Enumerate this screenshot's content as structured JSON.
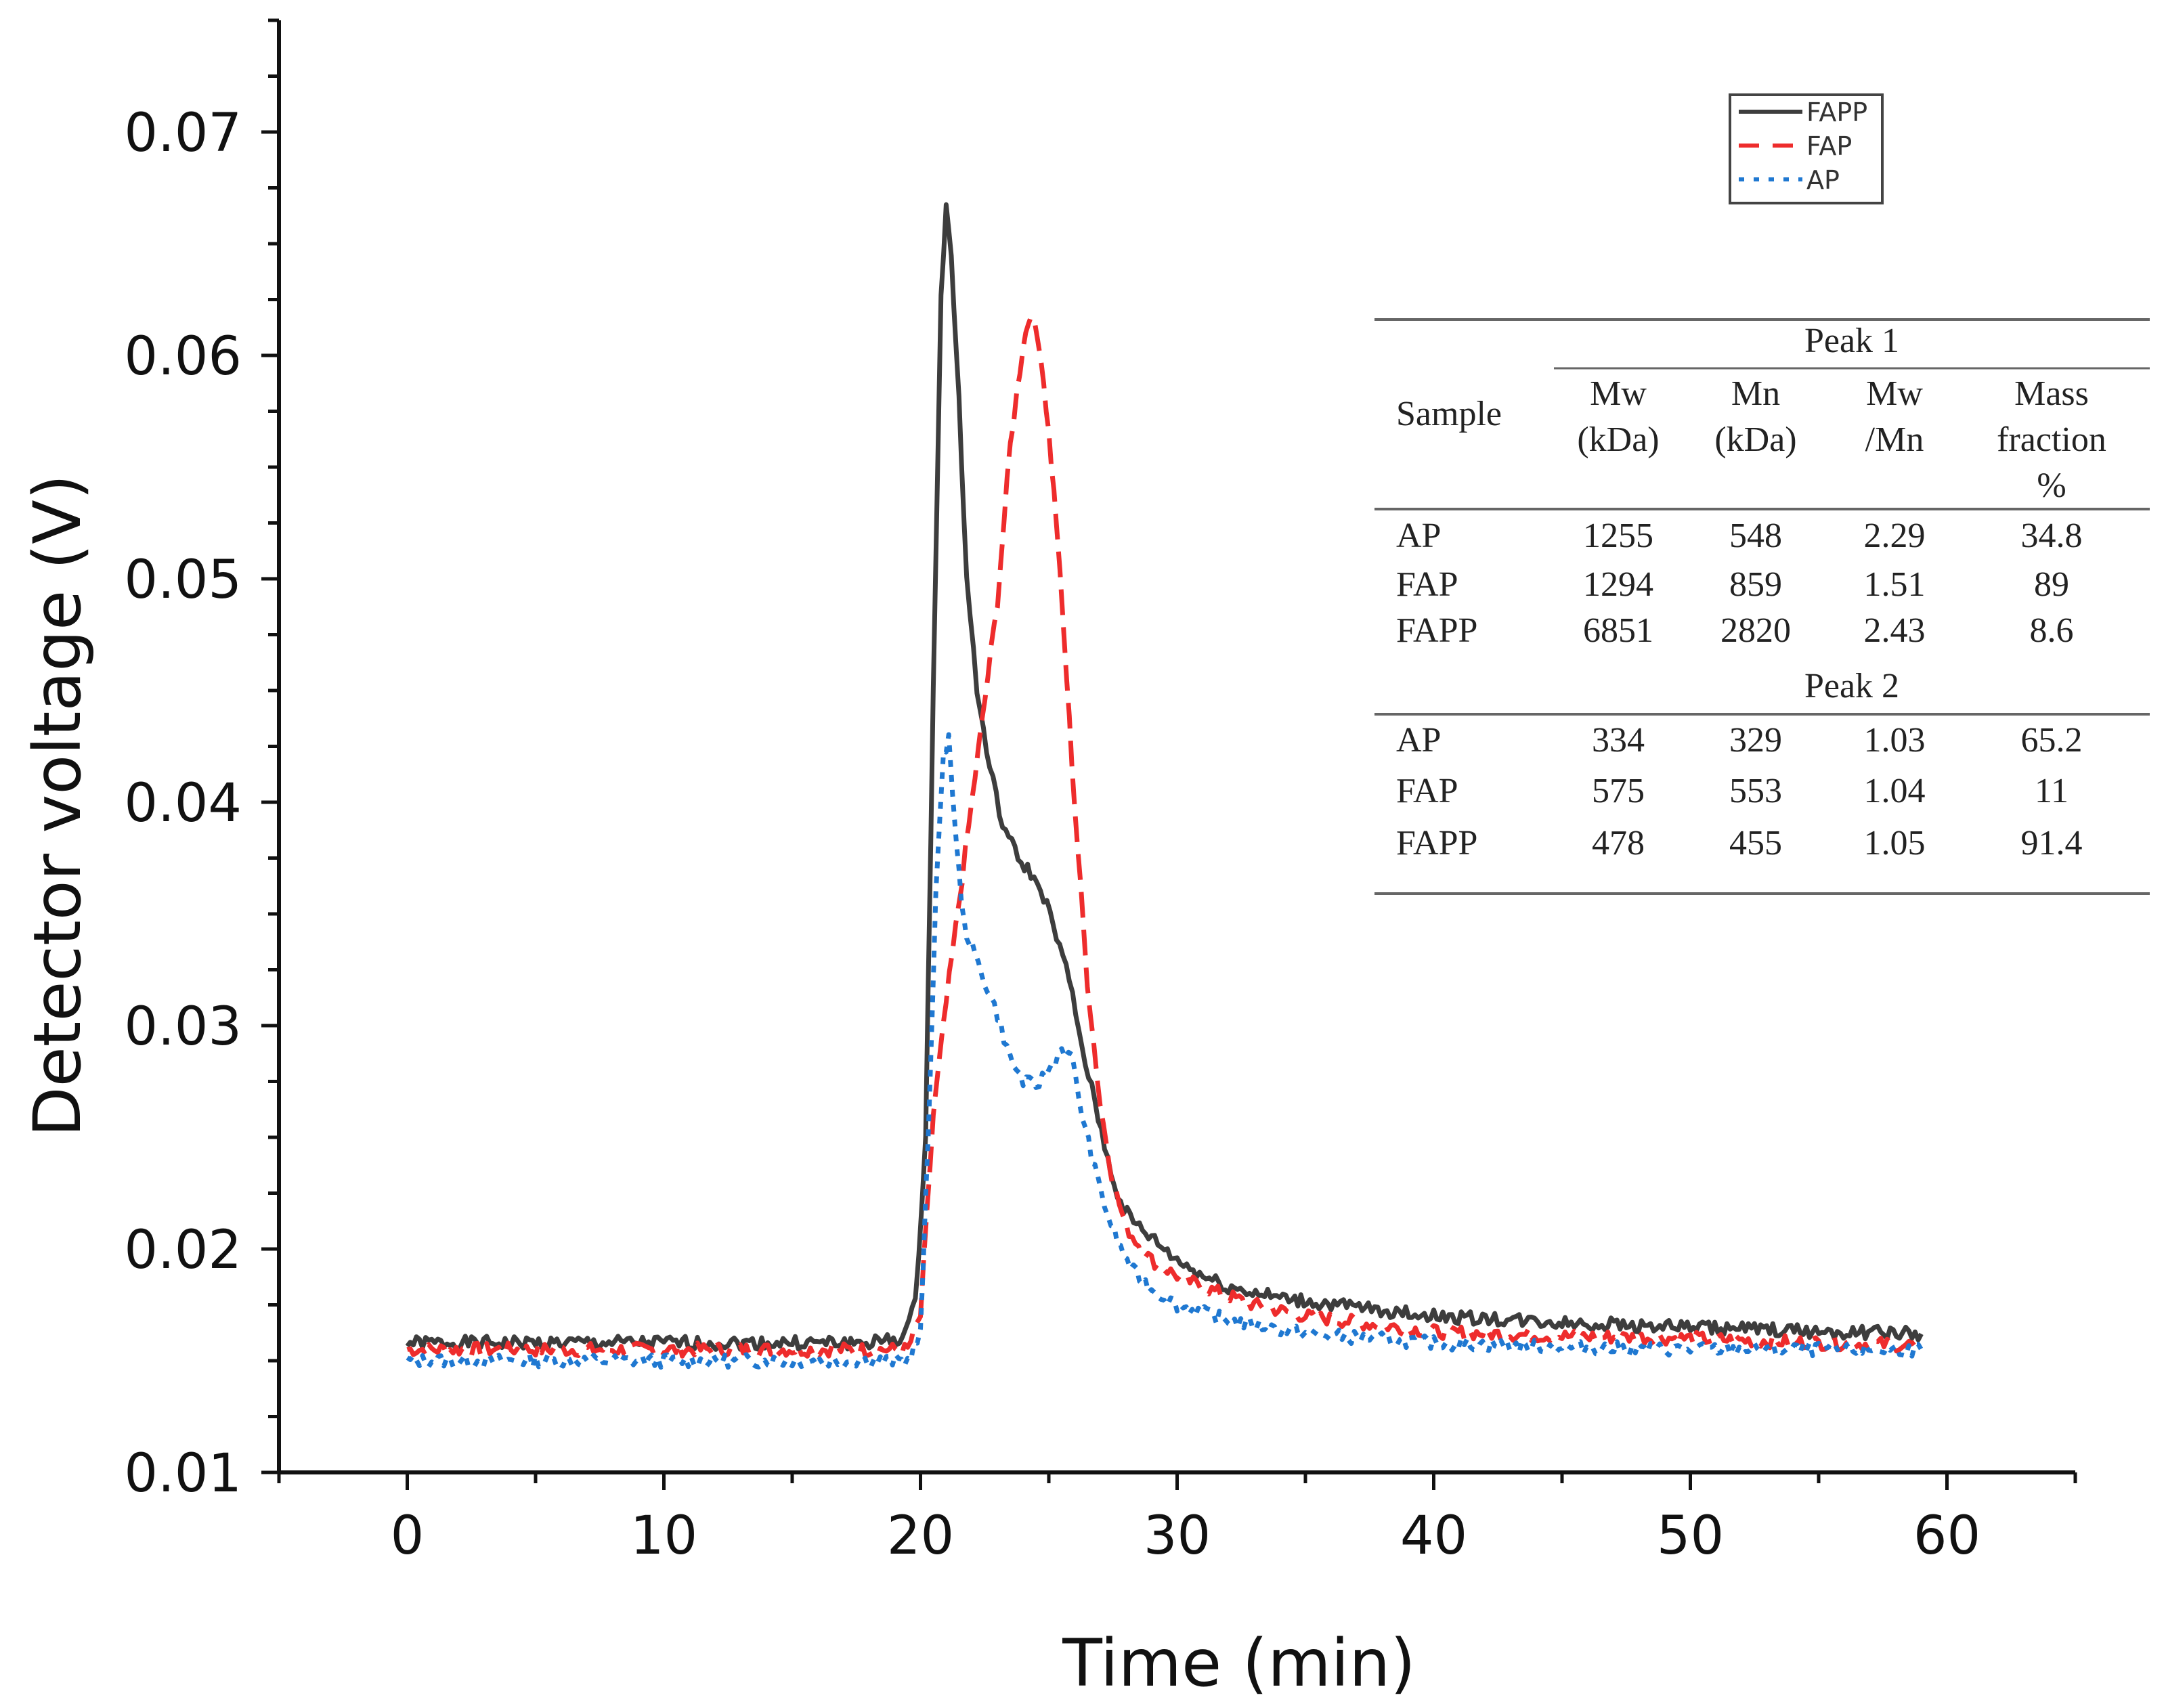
{
  "chart_data": {
    "type": "line",
    "xlabel": "Time (min)",
    "ylabel": "Detector voltage (V)",
    "xlim": [
      -5,
      65
    ],
    "ylim": [
      0.01,
      0.075
    ],
    "x_ticks": [
      "0",
      "10",
      "20",
      "30",
      "40",
      "50",
      "60"
    ],
    "y_ticks": [
      "0.01",
      "0.02",
      "0.03",
      "0.04",
      "0.05",
      "0.06",
      "0.07"
    ],
    "legend_position": "top-right",
    "series": [
      {
        "name": "FAPP",
        "color": "#3d3d3d",
        "style": "solid",
        "x": [
          0,
          5,
          10,
          15,
          18,
          19.3,
          19.8,
          20.2,
          20.5,
          20.8,
          21.0,
          21.2,
          21.5,
          21.8,
          22.2,
          22.7,
          23.2,
          23.8,
          24.3,
          24.8,
          25.3,
          25.8,
          26.3,
          26.8,
          27.3,
          27.8,
          28.3,
          29,
          30,
          31,
          32,
          34,
          36,
          40,
          45,
          50,
          55,
          59
        ],
        "y": [
          0.0158,
          0.0158,
          0.0158,
          0.0158,
          0.0158,
          0.016,
          0.0175,
          0.025,
          0.045,
          0.063,
          0.0665,
          0.0645,
          0.058,
          0.05,
          0.045,
          0.0415,
          0.039,
          0.0375,
          0.0368,
          0.0358,
          0.034,
          0.032,
          0.029,
          0.0265,
          0.024,
          0.022,
          0.0212,
          0.0205,
          0.0195,
          0.0188,
          0.0183,
          0.0178,
          0.0175,
          0.017,
          0.0167,
          0.0165,
          0.0163,
          0.0162
        ]
      },
      {
        "name": "FAP",
        "color": "#ee2c2c",
        "style": "dashed",
        "x": [
          0,
          5,
          10,
          15,
          19.5,
          20.0,
          20.5,
          21.0,
          21.5,
          22.0,
          22.5,
          23.0,
          23.5,
          24.0,
          24.3,
          24.7,
          25.0,
          25.3,
          25.7,
          26.0,
          26.5,
          27.0,
          27.5,
          28.0,
          28.5,
          29,
          30,
          31,
          33,
          35,
          40,
          45,
          50,
          55,
          59
        ],
        "y": [
          0.0155,
          0.0155,
          0.0155,
          0.0155,
          0.0155,
          0.017,
          0.026,
          0.031,
          0.0355,
          0.04,
          0.0445,
          0.049,
          0.056,
          0.0605,
          0.062,
          0.06,
          0.0565,
          0.0525,
          0.0455,
          0.04,
          0.032,
          0.0265,
          0.023,
          0.021,
          0.0202,
          0.0195,
          0.0188,
          0.0183,
          0.0175,
          0.017,
          0.0163,
          0.0161,
          0.016,
          0.0158,
          0.0157
        ]
      },
      {
        "name": "AP",
        "color": "#1f78d1",
        "style": "dotted",
        "x": [
          0,
          5,
          10,
          15,
          19.5,
          20.0,
          20.3,
          20.6,
          20.9,
          21.1,
          21.4,
          21.7,
          22.0,
          22.5,
          23.0,
          23.5,
          24.0,
          24.5,
          25.0,
          25.5,
          25.9,
          26.3,
          26.8,
          27.3,
          27.8,
          28.3,
          29,
          30,
          32,
          35,
          40,
          45,
          50,
          55,
          59
        ],
        "y": [
          0.015,
          0.015,
          0.015,
          0.015,
          0.015,
          0.0162,
          0.025,
          0.036,
          0.042,
          0.043,
          0.038,
          0.0345,
          0.0335,
          0.032,
          0.0305,
          0.0285,
          0.0275,
          0.0273,
          0.028,
          0.029,
          0.0285,
          0.026,
          0.0235,
          0.0215,
          0.02,
          0.019,
          0.0182,
          0.0175,
          0.0168,
          0.0162,
          0.0158,
          0.0156,
          0.0155,
          0.0155,
          0.0155
        ]
      }
    ],
    "inset_table": {
      "sample_header": "Sample",
      "columns": [
        "Mw (kDa)",
        "Mn (kDa)",
        "Mw /Mn",
        "Mass fraction %"
      ],
      "column_lines": [
        [
          "Mw",
          "(kDa)"
        ],
        [
          "Mn",
          "(kDa)"
        ],
        [
          "Mw",
          "/Mn"
        ],
        [
          "Mass",
          "fraction",
          "%"
        ]
      ],
      "groups": [
        {
          "label": "Peak 1",
          "rows": [
            [
              "AP",
              "1255",
              "548",
              "2.29",
              "34.8"
            ],
            [
              "FAP",
              "1294",
              "859",
              "1.51",
              "89"
            ],
            [
              "FAPP",
              "6851",
              "2820",
              "2.43",
              "8.6"
            ]
          ]
        },
        {
          "label": "Peak  2",
          "rows": [
            [
              "AP",
              "334",
              "329",
              "1.03",
              "65.2"
            ],
            [
              "FAP",
              "575",
              "553",
              "1.04",
              "11"
            ],
            [
              "FAPP",
              "478",
              "455",
              "1.05",
              "91.4"
            ]
          ]
        }
      ]
    }
  }
}
